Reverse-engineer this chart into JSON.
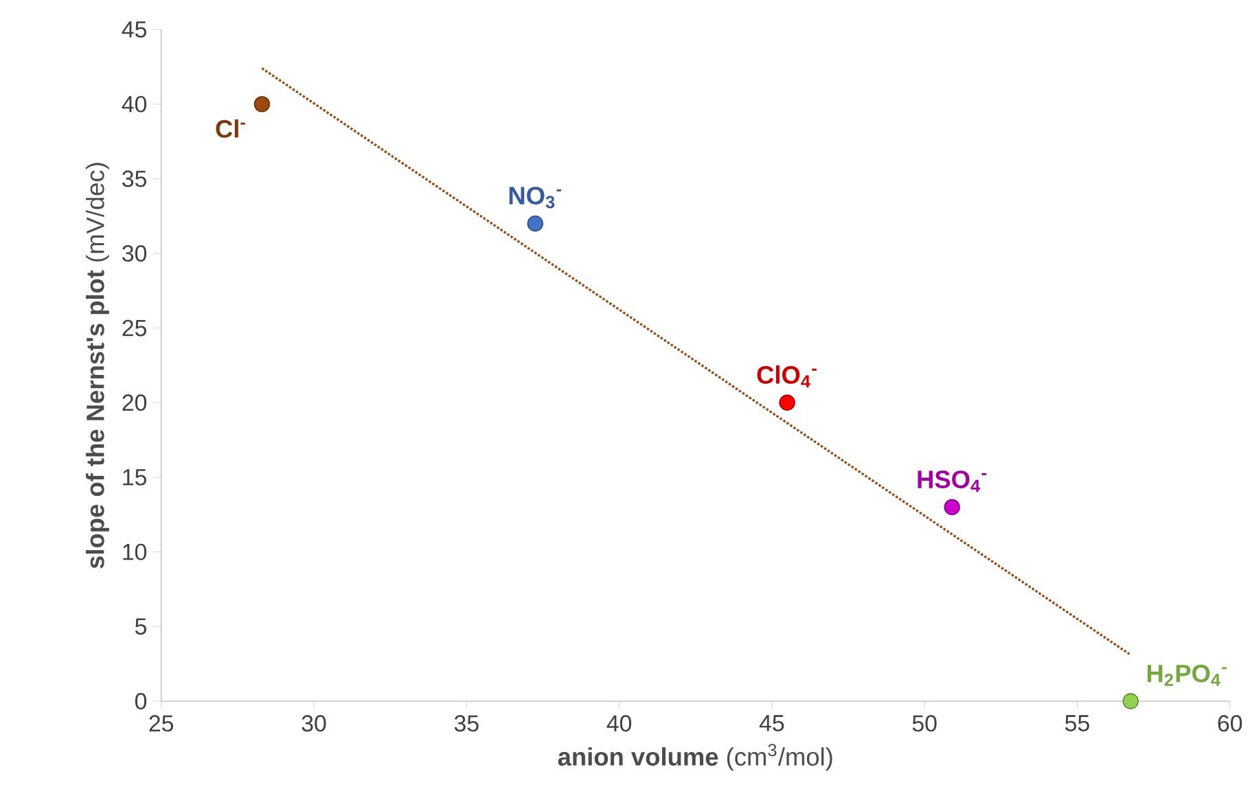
{
  "chart_data": {
    "type": "scatter",
    "xlabel": "**anion volume** (cm$^{3}$/mol)",
    "ylabel": "**slope of the Nernst's plot** (mV/dec)",
    "xlim": [
      25,
      60
    ],
    "ylim": [
      0,
      45
    ],
    "xticks": [
      25,
      30,
      35,
      40,
      45,
      50,
      55,
      60
    ],
    "yticks": [
      0,
      5,
      10,
      15,
      20,
      25,
      30,
      35,
      40,
      45
    ],
    "marker": "circle",
    "series": [
      {
        "name": "Cl$^{-}$",
        "color": "#9c4a10",
        "x": [
          28.3
        ],
        "values": [
          40
        ]
      },
      {
        "name": "NO$_{3}$$^{-}$",
        "color": "#4472c4",
        "x": [
          37.25
        ],
        "values": [
          32
        ]
      },
      {
        "name": "ClO$_{4}$$^{-}$",
        "color": "#ff0000",
        "x": [
          45.5
        ],
        "values": [
          20
        ]
      },
      {
        "name": "HSO$_{4}$$^{-}$",
        "color": "#cc00cc",
        "x": [
          50.9
        ],
        "values": [
          13
        ]
      },
      {
        "name": "H$_{2}$PO$_{4}$$^{-}$",
        "color": "#92d050",
        "x": [
          56.75
        ],
        "values": [
          0
        ]
      },
      {
        "type": "line",
        "color": "#9c4a10",
        "line_style": "dotted",
        "marker": "none",
        "x": [
          28.3,
          56.75
        ],
        "values": [
          42.4,
          3.1
        ]
      }
    ]
  }
}
